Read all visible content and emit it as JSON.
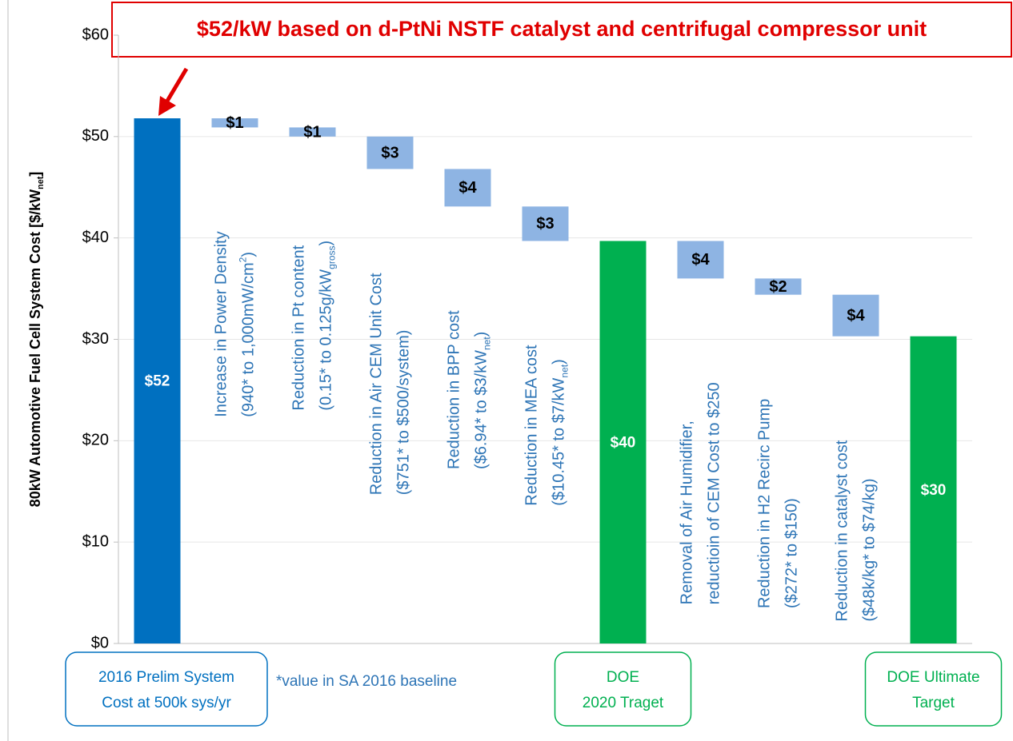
{
  "chart_data": {
    "type": "waterfall",
    "title": "$52/kW based on d-PtNi NSTF catalyst and centrifugal compressor unit",
    "y_label": [
      {
        "text": "80kW Automotive Fuel Cell System Cost [$/kW"
      },
      {
        "text": "net",
        "sub": true
      },
      {
        "text": "]"
      }
    ],
    "note": "*value in SA 2016 baseline",
    "categories": [
      [
        [
          {
            "text": "2016 Prelim System"
          }
        ],
        [
          {
            "text": "Cost at 500k sys/yr"
          }
        ]
      ],
      [
        [
          {
            "text": "Increase in Power Density"
          }
        ],
        [
          {
            "text": "(940* to 1,000mW/cm"
          },
          {
            "text": "2",
            "sup": true
          },
          {
            "text": ")"
          }
        ]
      ],
      [
        [
          {
            "text": "Reduction in Pt content"
          }
        ],
        [
          {
            "text": "(0.15* to 0.125g/kW"
          },
          {
            "text": "gross",
            "sub": true
          },
          {
            "text": ")"
          }
        ]
      ],
      [
        [
          {
            "text": "Reduction in Air CEM Unit Cost"
          }
        ],
        [
          {
            "text": "($751* to  $500/system)"
          }
        ]
      ],
      [
        [
          {
            "text": "Reduction in BPP cost"
          }
        ],
        [
          {
            "text": "($6.94* to $3/kW"
          },
          {
            "text": "net",
            "sub": true
          },
          {
            "text": ")"
          }
        ]
      ],
      [
        [
          {
            "text": "Reduction in MEA cost"
          }
        ],
        [
          {
            "text": "($10.45* to $7/kW"
          },
          {
            "text": "net",
            "sub": true
          },
          {
            "text": ")"
          }
        ]
      ],
      [
        [
          {
            "text": "DOE"
          }
        ],
        [
          {
            "text": "2020 Traget"
          }
        ]
      ],
      [
        [
          {
            "text": "Removal of Air Humidifier,"
          }
        ],
        [
          {
            "text": "reductioin of CEM Cost to $250"
          }
        ]
      ],
      [
        [
          {
            "text": "Reduction in H2 Recirc Pump"
          }
        ],
        [
          {
            "text": "($272* to $150)"
          }
        ]
      ],
      [
        [
          {
            "text": "Reduction in catalyst cost"
          }
        ],
        [
          {
            "text": "($48k/kg* to $74/kg)"
          }
        ]
      ],
      [
        [
          {
            "text": "DOE Ultimate"
          }
        ],
        [
          {
            "text": "Target"
          }
        ]
      ]
    ],
    "measure": [
      "absolute",
      "relative",
      "relative",
      "relative",
      "relative",
      "relative",
      "absolute",
      "relative",
      "relative",
      "relative",
      "absolute"
    ],
    "values": [
      51.8,
      -0.9,
      -0.9,
      -3.2,
      -3.7,
      -3.4,
      39.7,
      -3.7,
      -1.6,
      -4.1,
      30.3
    ],
    "value_labels": [
      "$52",
      "$1",
      "$1",
      "$3",
      "$4",
      "$3",
      "$40",
      "$4",
      "$2",
      "$4",
      "$30"
    ],
    "colors": [
      "#0070c0",
      "#8eb4e3",
      "#8eb4e3",
      "#8eb4e3",
      "#8eb4e3",
      "#8eb4e3",
      "#00b050",
      "#8eb4e3",
      "#8eb4e3",
      "#8eb4e3",
      "#00b050"
    ],
    "ylim": [
      0,
      60
    ],
    "yticks": [
      {
        "value": 0,
        "label": "$0"
      },
      {
        "value": 10,
        "label": "$10"
      },
      {
        "value": 20,
        "label": "$20"
      },
      {
        "value": 30,
        "label": "$30"
      },
      {
        "value": 40,
        "label": "$40"
      },
      {
        "value": 50,
        "label": "$50"
      },
      {
        "value": 60,
        "label": "$60"
      }
    ],
    "grid": true
  }
}
